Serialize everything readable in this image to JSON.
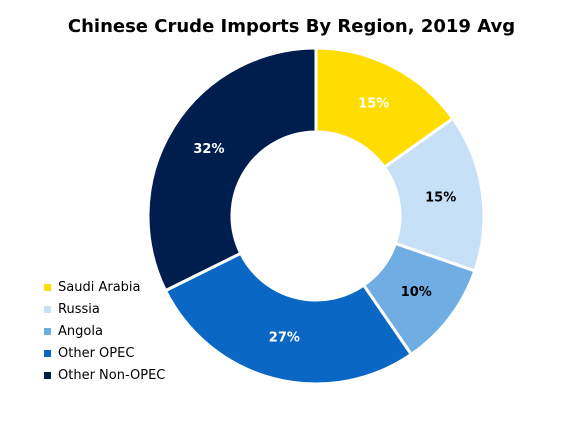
{
  "chart_data": {
    "type": "pie",
    "title": "Chinese Crude Imports By Region, 2019 Avg",
    "donut": true,
    "legend_position": "left",
    "categories": [
      "Saudi Arabia",
      "Russia",
      "Angola",
      "Other OPEC",
      "Other Non-OPEC"
    ],
    "values": [
      15,
      15,
      10,
      27,
      32
    ],
    "value_labels": [
      "15%",
      "15%",
      "10%",
      "27%",
      "32%"
    ],
    "colors": [
      "#FFDD00",
      "#C5E0F7",
      "#70ADE2",
      "#0A67C4",
      "#001E4D"
    ],
    "label_colors": [
      "#FFFFFF",
      "#000000",
      "#000000",
      "#FFFFFF",
      "#FFFFFF"
    ]
  }
}
